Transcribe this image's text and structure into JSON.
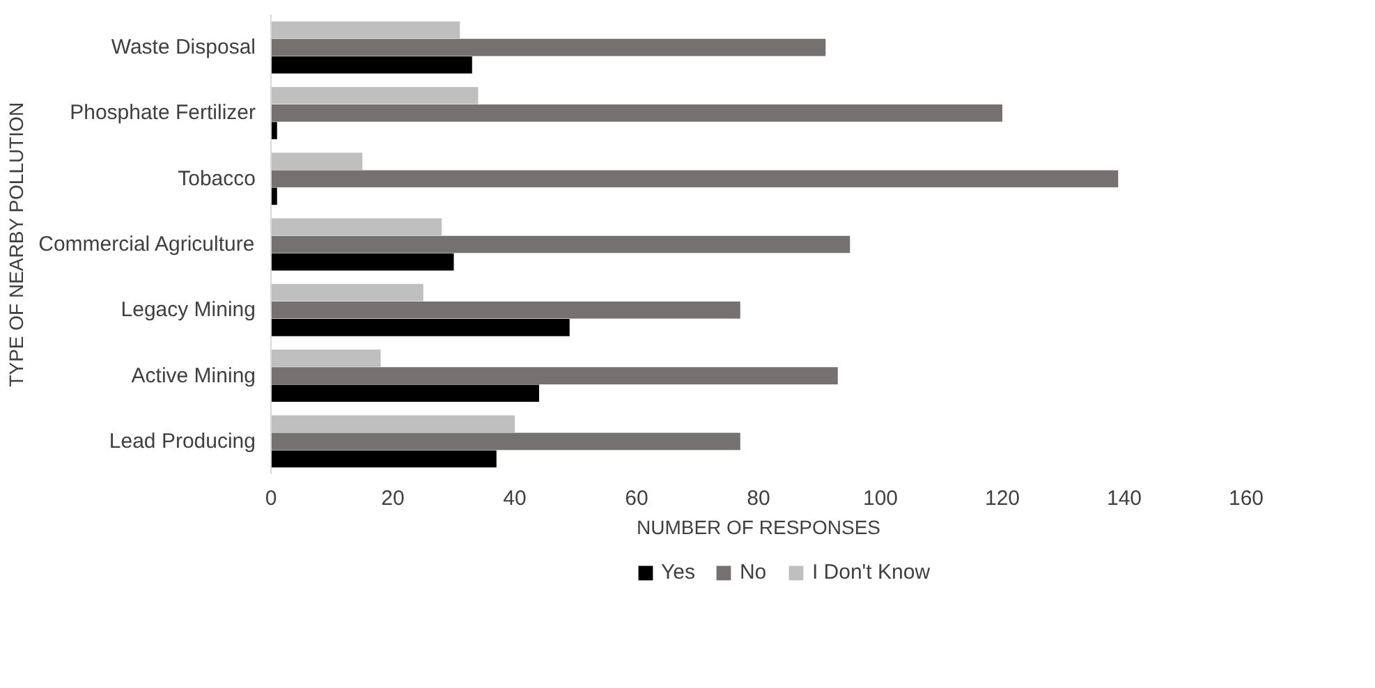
{
  "chart_data": {
    "type": "bar",
    "orientation": "horizontal",
    "xlabel": "NUMBER OF RESPONSES",
    "ylabel": "TYPE OF NEARBY POLLUTION",
    "categories": [
      "Waste Disposal",
      "Phosphate Fertilizer",
      "Tobacco",
      "Commercial Agriculture",
      "Legacy Mining",
      "Active Mining",
      "Lead Producing"
    ],
    "series": [
      {
        "name": "Yes",
        "color": "#000000",
        "values": [
          33,
          1,
          1,
          30,
          49,
          44,
          37
        ]
      },
      {
        "name": "No",
        "color": "#767171",
        "values": [
          91,
          120,
          139,
          95,
          77,
          93,
          77
        ]
      },
      {
        "name": "I Don't Know",
        "color": "#bfbfbf",
        "values": [
          31,
          34,
          15,
          28,
          25,
          18,
          40
        ]
      }
    ],
    "xlim": [
      0,
      160
    ],
    "xticks": [
      0,
      20,
      40,
      60,
      80,
      100,
      120,
      140,
      160
    ],
    "grid": false,
    "legend": "bottom"
  }
}
